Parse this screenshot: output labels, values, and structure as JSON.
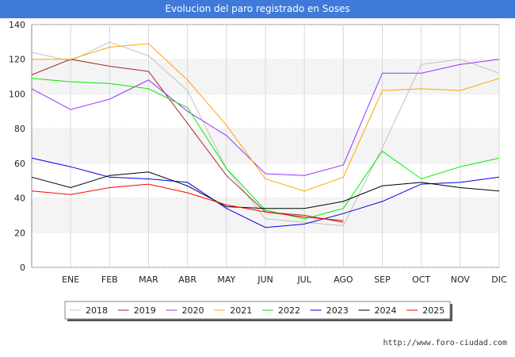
{
  "page": {
    "title": "Evolucion del paro registrado en Soses",
    "footer": "http://www.foro-ciudad.com"
  },
  "chart_data": {
    "type": "line",
    "title": "Evolucion del paro registrado en Soses",
    "xlabel": "",
    "ylabel": "",
    "categories": [
      "",
      "ENE",
      "FEB",
      "MAR",
      "ABR",
      "MAY",
      "JUN",
      "JUL",
      "AGO",
      "SEP",
      "OCT",
      "NOV",
      "DIC"
    ],
    "ylim": [
      0,
      140
    ],
    "yticks": [
      0,
      20,
      40,
      60,
      80,
      100,
      120,
      140
    ],
    "grid": true,
    "legend_position": "bottom",
    "series": [
      {
        "name": "2018",
        "color": "#c0c0c0",
        "values": [
          124,
          119,
          130,
          122,
          102,
          57,
          28,
          26,
          24,
          69,
          117,
          120,
          112
        ]
      },
      {
        "name": "2019",
        "color": "#a52a2a",
        "values": [
          111,
          120,
          116,
          113,
          83,
          53,
          32,
          30,
          26,
          null,
          null,
          null,
          null
        ]
      },
      {
        "name": "2020",
        "color": "#9b30ff",
        "values": [
          103,
          91,
          97,
          108,
          90,
          76,
          54,
          53,
          59,
          112,
          112,
          117,
          120
        ]
      },
      {
        "name": "2021",
        "color": "#ffa500",
        "values": [
          120,
          120,
          127,
          129,
          108,
          82,
          51,
          44,
          52,
          102,
          103,
          102,
          109
        ]
      },
      {
        "name": "2022",
        "color": "#00ee00",
        "values": [
          109,
          107,
          106,
          103,
          92,
          57,
          33,
          28,
          34,
          67,
          51,
          58,
          63
        ]
      },
      {
        "name": "2023",
        "color": "#0000ee",
        "values": [
          63,
          58,
          52,
          51,
          49,
          34,
          23,
          25,
          31,
          38,
          48,
          49,
          52
        ]
      },
      {
        "name": "2024",
        "color": "#000000",
        "values": [
          52,
          46,
          53,
          55,
          47,
          35,
          34,
          34,
          38,
          47,
          49,
          46,
          44
        ]
      },
      {
        "name": "2025",
        "color": "#ff0000",
        "values": [
          44,
          42,
          46,
          48,
          43,
          36,
          32,
          29,
          27,
          null,
          null,
          null,
          null
        ]
      }
    ]
  }
}
